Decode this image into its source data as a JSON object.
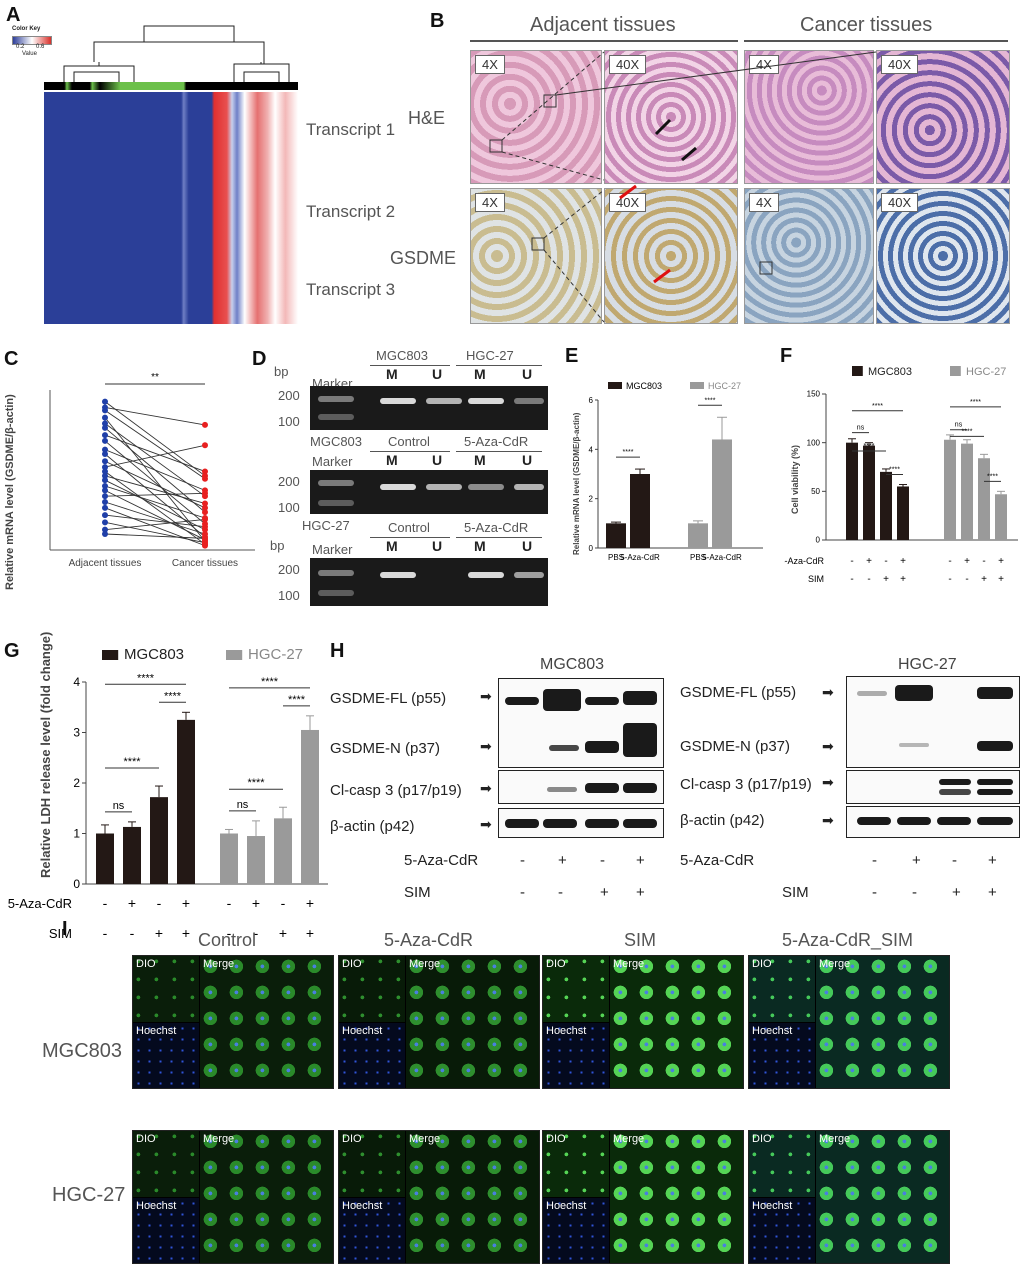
{
  "panels": {
    "a": "A",
    "b": "B",
    "c": "C",
    "d": "D",
    "e": "E",
    "f": "F",
    "g": "G",
    "h": "H",
    "i": "I"
  },
  "heatmap": {
    "color_key_title": "Color Key",
    "color_key_ticks": [
      "0.2",
      "0.6"
    ],
    "color_key_label": "Value",
    "rows": [
      "Transcript 1",
      "Transcript 2",
      "Transcript 3"
    ]
  },
  "histology": {
    "col_headers": [
      "Adjacent tissues",
      "Cancer tissues"
    ],
    "row_labels": [
      "H&E",
      "GSDME"
    ],
    "mag_low": "4X",
    "mag_high": "40X"
  },
  "panel_c": {
    "y_label": "Relative mRNA level (GSDME/β-actin)",
    "x_ticks": [
      "Adjacent tissues",
      "Cancer tissues"
    ],
    "sig": "**"
  },
  "gels": {
    "bp": "bp",
    "marker": "Marker",
    "sizes": [
      "200",
      "100"
    ],
    "gel1": {
      "groups": [
        "MGC803",
        "HGC-27"
      ],
      "lanes": [
        "M",
        "U",
        "M",
        "U"
      ]
    },
    "gel2": {
      "cell": "MGC803",
      "groups": [
        "Control",
        "5-Aza-CdR"
      ],
      "lanes": [
        "M",
        "U",
        "M",
        "U"
      ]
    },
    "gel3": {
      "cell": "HGC-27",
      "groups": [
        "Control",
        "5-Aza-CdR"
      ],
      "lanes": [
        "M",
        "U",
        "M",
        "U"
      ]
    }
  },
  "western": {
    "mgc_title": "MGC803",
    "hgc_title": "HGC-27",
    "rows": [
      "GSDME-FL (p55)",
      "GSDME-N (p37)",
      "Cl-casp 3 (p17/p19)",
      "β-actin (p42)"
    ],
    "treat_rows": [
      "5-Aza-CdR",
      "SIM"
    ],
    "aza_signs": [
      "-",
      "+",
      "-",
      "+"
    ],
    "sim_signs": [
      "-",
      "-",
      "+",
      "+"
    ]
  },
  "fluorescence": {
    "columns": [
      "Control",
      "5-Aza-CdR",
      "SIM",
      "5-Aza-CdR_SIM"
    ],
    "rows": [
      "MGC803",
      "HGC-27"
    ],
    "tiles": [
      "DIO",
      "Merge",
      "Hoechst"
    ]
  },
  "chart_data": [
    {
      "id": "C",
      "type": "scatter",
      "categories": [
        "Adjacent tissues",
        "Cancer tissues"
      ],
      "ylabel": "Relative mRNA level (GSDME/β-actin)",
      "pairs": [
        [
          10.2,
          5.1
        ],
        [
          9.8,
          8.6
        ],
        [
          9.6,
          4.9
        ],
        [
          9.1,
          0.6
        ],
        [
          8.7,
          3.7
        ],
        [
          8.4,
          2.6
        ],
        [
          7.9,
          5.4
        ],
        [
          7.5,
          1.8
        ],
        [
          6.9,
          4.1
        ],
        [
          6.6,
          0.9
        ],
        [
          6.1,
          2.9
        ],
        [
          5.7,
          7.2
        ],
        [
          5.4,
          0.4
        ],
        [
          5.1,
          3.2
        ],
        [
          4.8,
          1.4
        ],
        [
          4.4,
          2.2
        ],
        [
          4.1,
          0.7
        ],
        [
          3.7,
          3.9
        ],
        [
          3.3,
          1.1
        ],
        [
          2.9,
          0.3
        ],
        [
          2.4,
          1.6
        ],
        [
          1.9,
          0.5
        ],
        [
          1.4,
          2.1
        ],
        [
          1.1,
          0.8
        ]
      ],
      "colors": {
        "adjacent": "#1f3fa8",
        "cancer": "#e82020"
      },
      "significance": "**"
    },
    {
      "id": "E",
      "type": "bar",
      "ylabel": "Relative mRNA level (GSDME/β-actin)",
      "ylim": [
        0,
        6
      ],
      "yticks": [
        0,
        2,
        4,
        6
      ],
      "x_ticks": [
        "PBS",
        "5-Aza-CdR",
        "PBS",
        "5-Aza-CdR"
      ],
      "series": [
        {
          "name": "MGC803",
          "color": "#231815",
          "values": [
            1.0,
            3.0
          ],
          "errors": [
            0.05,
            0.2
          ]
        },
        {
          "name": "HGC-27",
          "color": "#9a9a9a",
          "values": [
            1.0,
            4.4
          ],
          "errors": [
            0.1,
            0.9
          ]
        }
      ],
      "significance": [
        "****",
        "****"
      ]
    },
    {
      "id": "F",
      "type": "bar",
      "ylabel": "Cell viability (%)",
      "ylim": [
        0,
        150
      ],
      "yticks": [
        0,
        50,
        100,
        150
      ],
      "series": [
        {
          "name": "MGC803",
          "color": "#231815",
          "values": [
            100,
            97,
            70,
            55
          ],
          "errors": [
            4,
            3,
            3,
            2
          ]
        },
        {
          "name": "HGC-27",
          "color": "#9a9a9a",
          "values": [
            103,
            99,
            84,
            47
          ],
          "errors": [
            5,
            4,
            4,
            3
          ]
        }
      ],
      "row_labels": [
        "5-Aza-CdR",
        "SIM"
      ],
      "aza_signs": [
        "-",
        "+",
        "-",
        "+"
      ],
      "sim_signs": [
        "-",
        "-",
        "+",
        "+"
      ],
      "significance": [
        "ns",
        "****",
        "****",
        "****"
      ]
    },
    {
      "id": "G",
      "type": "bar",
      "ylabel": "Relative LDH release level (fold change)",
      "ylim": [
        0,
        4
      ],
      "yticks": [
        0,
        1,
        2,
        3,
        4
      ],
      "series": [
        {
          "name": "MGC803",
          "color": "#231815",
          "values": [
            1.0,
            1.13,
            1.72,
            3.25
          ],
          "errors": [
            0.17,
            0.1,
            0.22,
            0.15
          ]
        },
        {
          "name": "HGC-27",
          "color": "#9a9a9a",
          "values": [
            1.0,
            0.95,
            1.3,
            3.05
          ],
          "errors": [
            0.08,
            0.3,
            0.22,
            0.28
          ]
        }
      ],
      "row_labels": [
        "5-Aza-CdR",
        "SIM"
      ],
      "aza_signs": [
        "-",
        "+",
        "-",
        "+"
      ],
      "sim_signs": [
        "-",
        "-",
        "+",
        "+"
      ],
      "significance": [
        "ns",
        "****",
        "****",
        "****"
      ]
    }
  ]
}
